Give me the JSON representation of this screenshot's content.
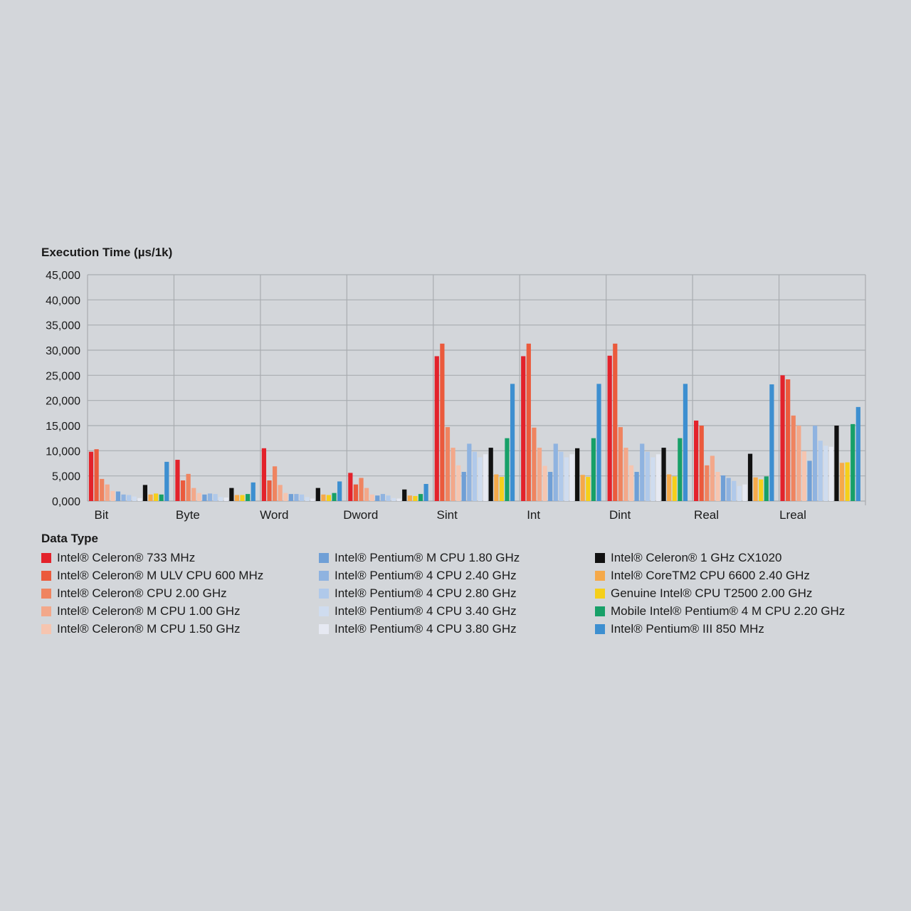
{
  "chart_data": {
    "type": "bar",
    "ylabel": "Execution Time (µs/1k)",
    "legend_title": "Data Type",
    "ylim": [
      0,
      45000
    ],
    "yticks": [
      "0,000",
      "5,000",
      "10,000",
      "15,000",
      "20,000",
      "25,000",
      "30,000",
      "35,000",
      "40,000",
      "45,000"
    ],
    "grid": true,
    "legend_position": "bottom",
    "categories": [
      "Bit",
      "Byte",
      "Word",
      "Dword",
      "Sint",
      "Int",
      "Dint",
      "Real",
      "Lreal"
    ],
    "series": [
      {
        "name": "Intel® Celeron® 733 MHz",
        "color": "#e3222b",
        "values": [
          9800,
          8200,
          10500,
          5600,
          28800,
          28800,
          28900,
          16000,
          25000
        ]
      },
      {
        "name": "Intel® Celeron® M ULV CPU 600 MHz",
        "color": "#eb5a3c",
        "values": [
          10300,
          4100,
          4100,
          3300,
          31300,
          31300,
          31300,
          15000,
          24200
        ]
      },
      {
        "name": "Intel® Celeron® CPU 2.00 GHz",
        "color": "#ef8460",
        "values": [
          4400,
          5400,
          6900,
          4600,
          14700,
          14600,
          14700,
          7100,
          17000
        ]
      },
      {
        "name": "Intel® Celeron® M CPU 1.00 GHz",
        "color": "#f3a88a",
        "values": [
          3300,
          2600,
          3200,
          2600,
          10600,
          10600,
          10600,
          9000,
          15000
        ]
      },
      {
        "name": "Intel® Celeron® M CPU 1.50 GHz",
        "color": "#f6c5b0",
        "values": [
          2000,
          1600,
          1600,
          1300,
          7100,
          7000,
          7100,
          5800,
          9900
        ]
      },
      {
        "name": "Intel® Pentium® M CPU 1.80 GHz",
        "color": "#6f9fd6",
        "values": [
          1900,
          1300,
          1400,
          1100,
          5800,
          5800,
          5800,
          5100,
          8000
        ]
      },
      {
        "name": "Intel® Pentium® 4 CPU 2.40 GHz",
        "color": "#8fb3e0",
        "values": [
          1300,
          1500,
          1400,
          1400,
          11400,
          11400,
          11400,
          4600,
          15000
        ]
      },
      {
        "name": "Intel® Pentium® 4 CPU 2.80 GHz",
        "color": "#b0c9ea",
        "values": [
          1200,
          1400,
          1300,
          1100,
          9800,
          9800,
          9800,
          4000,
          12000
        ]
      },
      {
        "name": "Intel® Pentium® 4 CPU 3.40 GHz",
        "color": "#cfdcef",
        "values": [
          900,
          800,
          800,
          600,
          8700,
          8700,
          8700,
          3000,
          11000
        ]
      },
      {
        "name": "Intel® Pentium® 4 CPU 3.80 GHz",
        "color": "#e6e9f2",
        "values": [
          600,
          700,
          500,
          500,
          9300,
          9300,
          9300,
          3300,
          10800
        ]
      },
      {
        "name": "Intel® Celeron® 1 GHz CX1020",
        "color": "#111111",
        "values": [
          3200,
          2600,
          2600,
          2300,
          10600,
          10500,
          10600,
          9400,
          15000
        ]
      },
      {
        "name": "Intel® CoreTM2 CPU 6600 2.40 GHz",
        "color": "#f5a94a",
        "values": [
          1300,
          1200,
          1300,
          1100,
          5300,
          5200,
          5300,
          4700,
          7600
        ]
      },
      {
        "name": "Genuine Intel® CPU T2500 2.00 GHz",
        "color": "#f5cf1a",
        "values": [
          1500,
          1200,
          1200,
          1000,
          4800,
          4800,
          4900,
          4300,
          7700
        ]
      },
      {
        "name": "Mobile Intel® Pentium® 4 M CPU 2.20 GHz",
        "color": "#17a068",
        "values": [
          1300,
          1400,
          1600,
          1400,
          12500,
          12500,
          12500,
          4900,
          15300
        ]
      },
      {
        "name": "Intel® Pentium® III 850 MHz",
        "color": "#3d8fd0",
        "values": [
          7800,
          3700,
          3900,
          3400,
          23300,
          23300,
          23300,
          23200,
          18700
        ]
      }
    ]
  }
}
